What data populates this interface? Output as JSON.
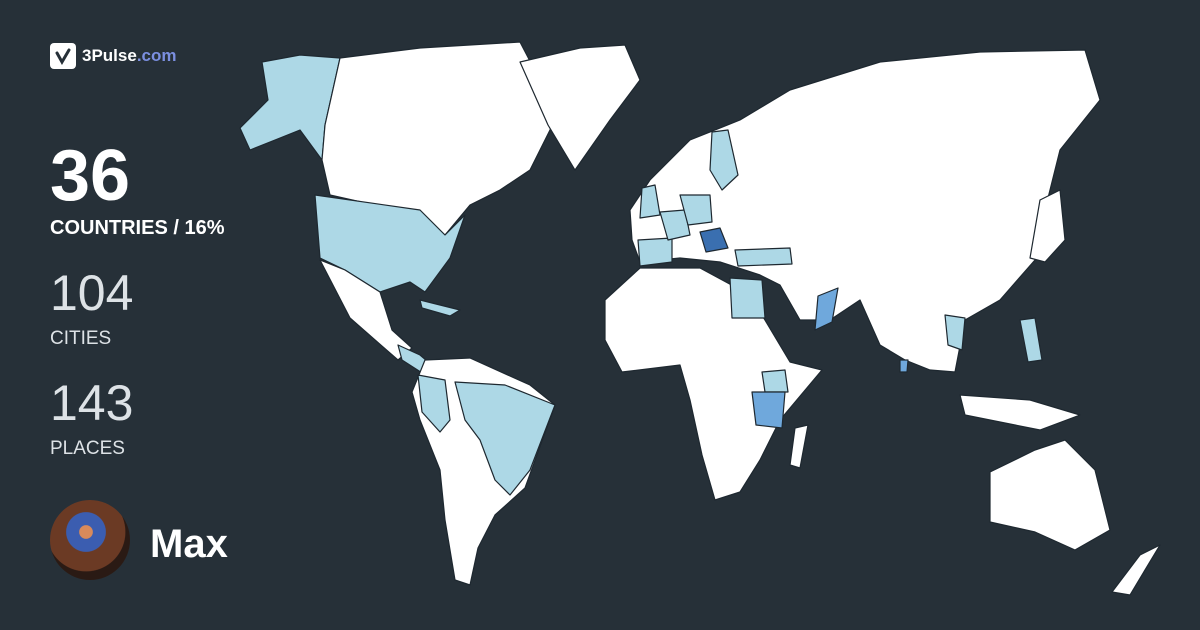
{
  "brand": {
    "name": "3Pulse",
    "tld": ".com",
    "icon": "check-pulse-icon"
  },
  "stats": {
    "countries_count": "36",
    "countries_label": "COUNTRIES / 16%",
    "cities_count": "104",
    "cities_label": "CITIES",
    "places_count": "143",
    "places_label": "PLACES"
  },
  "user": {
    "name": "Max"
  },
  "colors": {
    "background": "#263038",
    "unvisited": "#ffffff",
    "visited": "#add8e6",
    "visited_more": "#6fa8dc",
    "visited_most": "#3a6fb0"
  }
}
